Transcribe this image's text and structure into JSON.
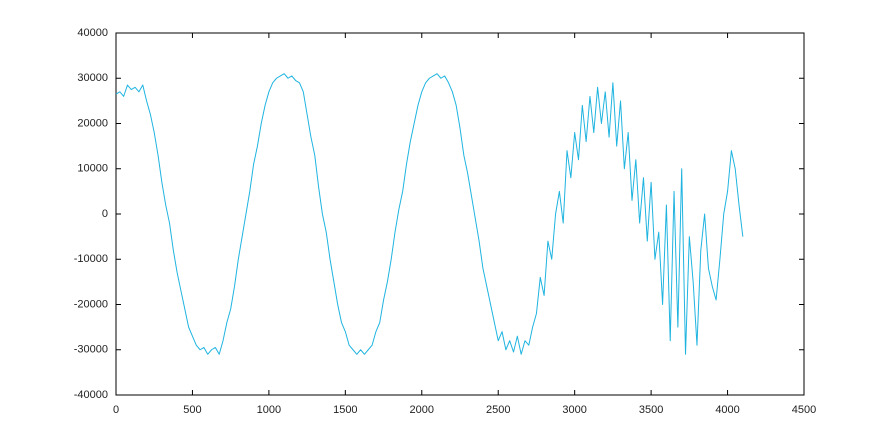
{
  "chart_data": {
    "type": "line",
    "x": [
      0,
      25,
      50,
      75,
      100,
      125,
      150,
      175,
      200,
      225,
      250,
      275,
      300,
      325,
      350,
      375,
      400,
      425,
      450,
      475,
      500,
      525,
      550,
      575,
      600,
      625,
      650,
      675,
      700,
      725,
      750,
      775,
      800,
      825,
      850,
      875,
      900,
      925,
      950,
      975,
      1000,
      1025,
      1050,
      1075,
      1100,
      1125,
      1150,
      1175,
      1200,
      1225,
      1250,
      1275,
      1300,
      1325,
      1350,
      1375,
      1400,
      1425,
      1450,
      1475,
      1500,
      1525,
      1550,
      1575,
      1600,
      1625,
      1650,
      1675,
      1700,
      1725,
      1750,
      1775,
      1800,
      1825,
      1850,
      1875,
      1900,
      1925,
      1950,
      1975,
      2000,
      2025,
      2050,
      2075,
      2100,
      2125,
      2150,
      2175,
      2200,
      2225,
      2250,
      2275,
      2300,
      2325,
      2350,
      2375,
      2400,
      2425,
      2450,
      2475,
      2500,
      2525,
      2550,
      2575,
      2600,
      2625,
      2650,
      2675,
      2700,
      2725,
      2750,
      2775,
      2800,
      2825,
      2850,
      2875,
      2900,
      2925,
      2950,
      2975,
      3000,
      3025,
      3050,
      3075,
      3100,
      3125,
      3150,
      3175,
      3200,
      3225,
      3250,
      3275,
      3300,
      3325,
      3350,
      3375,
      3400,
      3425,
      3450,
      3475,
      3500,
      3525,
      3550,
      3575,
      3600,
      3625,
      3650,
      3675,
      3700,
      3725,
      3750,
      3775,
      3800,
      3825,
      3850,
      3875,
      3900,
      3925,
      3950,
      3975,
      4000,
      4025,
      4050,
      4075,
      4100
    ],
    "series": [
      {
        "color": "#1fb4e0",
        "values": [
          26500,
          27000,
          26000,
          28500,
          27500,
          28000,
          27000,
          28500,
          25000,
          22000,
          18000,
          13000,
          7000,
          2000,
          -2000,
          -8000,
          -13000,
          -17000,
          -21000,
          -25000,
          -27000,
          -29000,
          -30000,
          -29500,
          -31000,
          -30000,
          -29500,
          -31000,
          -28000,
          -24000,
          -21000,
          -16000,
          -10000,
          -5000,
          0,
          5000,
          11000,
          15000,
          20000,
          24000,
          27000,
          29000,
          30000,
          30500,
          31000,
          30000,
          30500,
          29500,
          29000,
          27000,
          22000,
          17000,
          13000,
          6000,
          0,
          -4000,
          -10000,
          -15000,
          -20000,
          -24000,
          -26000,
          -29000,
          -30000,
          -31000,
          -30000,
          -31000,
          -30000,
          -29000,
          -26000,
          -24000,
          -19000,
          -15000,
          -10000,
          -4000,
          1000,
          5000,
          11000,
          16000,
          20000,
          24000,
          27000,
          29000,
          30000,
          30500,
          31000,
          30000,
          30500,
          29000,
          27000,
          24000,
          19000,
          13000,
          9000,
          4000,
          -1000,
          -6000,
          -12000,
          -16000,
          -20000,
          -24000,
          -28000,
          -26000,
          -30000,
          -28000,
          -30500,
          -27000,
          -31000,
          -28000,
          -29000,
          -25000,
          -22000,
          -14000,
          -18000,
          -6000,
          -10000,
          0,
          5000,
          -2000,
          14000,
          8000,
          18000,
          12000,
          24000,
          16000,
          26000,
          18000,
          28000,
          20000,
          27000,
          17000,
          29000,
          15000,
          25000,
          10000,
          18000,
          3000,
          12000,
          -2000,
          8000,
          -6000,
          7000,
          -10000,
          -4000,
          -20000,
          2000,
          -28000,
          5000,
          -25000,
          10000,
          -31000,
          -5000,
          -15000,
          -29000,
          -8000,
          0,
          -12000,
          -16000,
          -19000,
          -10000,
          0,
          5000,
          14000,
          10000,
          2000,
          -5000
        ]
      }
    ],
    "xlim": [
      0,
      4500
    ],
    "xticks": [
      0,
      500,
      1000,
      1500,
      2000,
      2500,
      3000,
      3500,
      4000,
      4500
    ],
    "ylim": [
      -40000,
      40000
    ],
    "yticks": [
      -40000,
      -30000,
      -20000,
      -10000,
      0,
      10000,
      20000,
      30000,
      40000
    ],
    "grid": false
  }
}
